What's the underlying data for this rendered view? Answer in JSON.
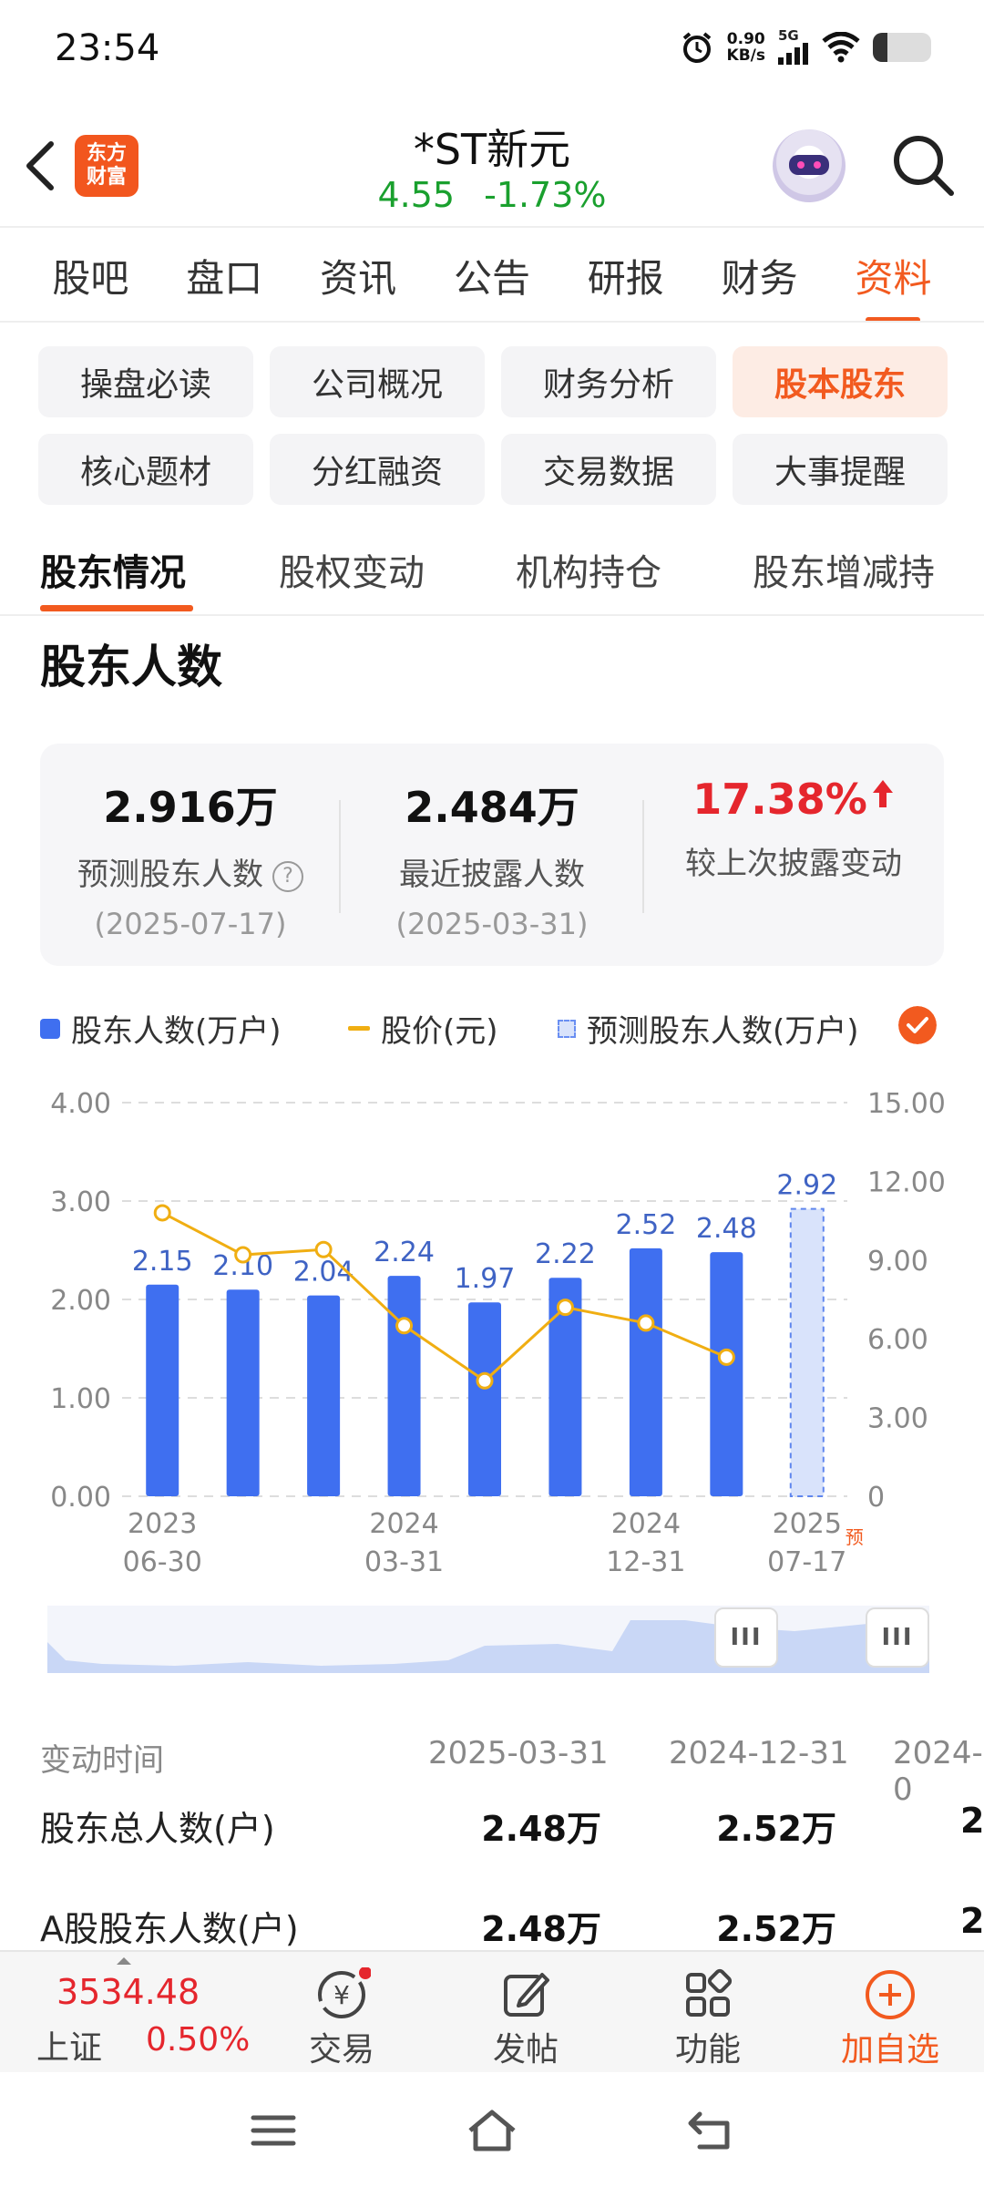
{
  "status_bar": {
    "time": "23:54",
    "net_speed_value": "0.90",
    "net_speed_unit": "KB/s",
    "network": "5G",
    "icons": [
      "alarm-icon",
      "signal-icon",
      "wifi-icon",
      "battery-icon"
    ],
    "battery_level": 0.25
  },
  "header": {
    "logo_line1": "东方",
    "logo_line2": "财富",
    "stock_name": "*ST新元",
    "price": "4.55",
    "change_pct": "-1.73%"
  },
  "main_tabs": [
    {
      "label": "股吧"
    },
    {
      "label": "盘口"
    },
    {
      "label": "资讯"
    },
    {
      "label": "公告"
    },
    {
      "label": "研报"
    },
    {
      "label": "财务"
    },
    {
      "label": "资料",
      "active": true
    }
  ],
  "sub_grid": [
    {
      "label": "操盘必读"
    },
    {
      "label": "公司概况"
    },
    {
      "label": "财务分析"
    },
    {
      "label": "股本股东",
      "active": true
    },
    {
      "label": "核心题材"
    },
    {
      "label": "分红融资"
    },
    {
      "label": "交易数据"
    },
    {
      "label": "大事提醒"
    }
  ],
  "section_tabs": [
    {
      "label": "股东情况",
      "active": true
    },
    {
      "label": "股权变动"
    },
    {
      "label": "机构持仓"
    },
    {
      "label": "股东增减持"
    }
  ],
  "section_title": "股东人数",
  "stats": [
    {
      "value": "2.916万",
      "label": "预测股东人数",
      "date": "(2025-07-17)"
    },
    {
      "value": "2.484万",
      "label": "最近披露人数",
      "date": "(2025-03-31)"
    },
    {
      "value": "17.38%",
      "label": "较上次披露变动"
    }
  ],
  "legend": {
    "item1": "股东人数(万户)",
    "item2": "股价(元)",
    "item3": "预测股东人数(万户)"
  },
  "chart_data": {
    "type": "bar",
    "x_tick_labels": [
      {
        "line1": "2023",
        "line2": "06-30",
        "index": 0
      },
      {
        "line1": "2024",
        "line2": "03-31",
        "index": 3
      },
      {
        "line1": "2024",
        "line2": "12-31",
        "index": 6
      },
      {
        "line1": "2025",
        "line2": "07-17",
        "index": 8
      }
    ],
    "forecast_mark": "预",
    "series": [
      {
        "name": "股东人数(万户)",
        "type": "bar",
        "axis": "left",
        "values": [
          2.15,
          2.1,
          2.04,
          2.24,
          1.97,
          2.22,
          2.52,
          2.48,
          null
        ],
        "labels": [
          "2.15",
          "2.10",
          "2.04",
          "2.24",
          "1.97",
          "2.22",
          "2.52",
          "2.48",
          ""
        ]
      },
      {
        "name": "预测股东人数(万户)",
        "type": "bar-dashed",
        "axis": "left",
        "values": [
          null,
          null,
          null,
          null,
          null,
          null,
          null,
          null,
          2.92
        ],
        "labels": [
          "",
          "",
          "",
          "",
          "",
          "",
          "",
          "",
          "2.92"
        ]
      },
      {
        "name": "股价(元)",
        "type": "line",
        "axis": "right",
        "values": [
          10.8,
          9.2,
          9.4,
          6.5,
          4.4,
          7.2,
          6.6,
          5.3,
          null
        ]
      }
    ],
    "y_left": {
      "ticks": [
        "0.00",
        "1.00",
        "2.00",
        "3.00",
        "4.00"
      ],
      "range": [
        0,
        4
      ]
    },
    "y_right": {
      "ticks": [
        "0",
        "3.00",
        "6.00",
        "9.00",
        "12.00",
        "15.00"
      ],
      "range": [
        0,
        15
      ]
    },
    "grid": true,
    "colors": {
      "bar": "#3f6ff0",
      "line": "#f0ae12",
      "forecast": "#d9e3fb",
      "label": "#3f63c4"
    }
  },
  "table": {
    "header_label": "变动时间",
    "columns": [
      "2025-03-31",
      "2024-12-31",
      "2024-0"
    ],
    "rows": [
      {
        "label": "股东总人数(户)",
        "values": [
          "2.48万",
          "2.52万",
          "2."
        ]
      },
      {
        "label": "A股股东人数(户)",
        "values": [
          "2.48万",
          "2.52万",
          "2."
        ]
      }
    ]
  },
  "toolbar": {
    "index_value": "3534.48",
    "index_name": "上证",
    "index_change": "0.50%",
    "items": [
      {
        "label": "交易",
        "icon": "trade-icon"
      },
      {
        "label": "发帖",
        "icon": "post-icon"
      },
      {
        "label": "功能",
        "icon": "function-icon"
      },
      {
        "label": "加自选",
        "icon": "add-watchlist-icon"
      }
    ]
  },
  "nav_bar": {
    "icons": [
      "menu-icon",
      "home-icon",
      "back-nav-icon"
    ]
  }
}
